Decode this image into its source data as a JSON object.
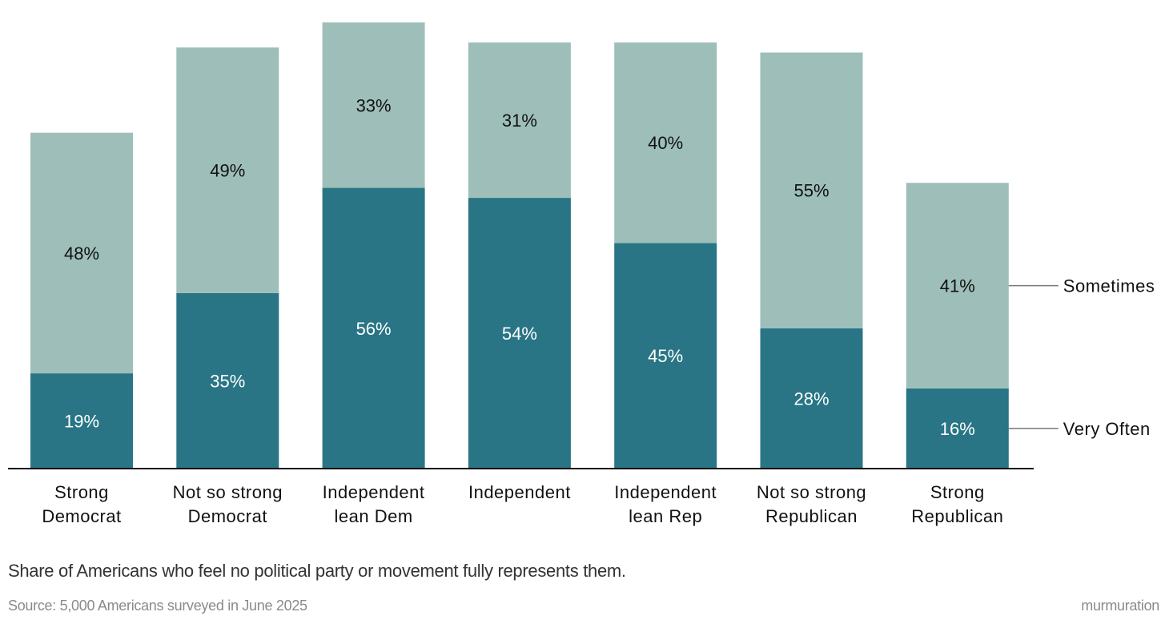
{
  "chart_data": {
    "type": "bar",
    "stacked": true,
    "categories": [
      [
        "Strong",
        "Democrat"
      ],
      [
        "Not so strong",
        "Democrat"
      ],
      [
        "Independent",
        "lean Dem"
      ],
      [
        "Independent"
      ],
      [
        "Independent",
        "lean Rep"
      ],
      [
        "Not so strong",
        "Republican"
      ],
      [
        "Strong",
        "Republican"
      ]
    ],
    "series": [
      {
        "name": "Very Often",
        "values": [
          19,
          35,
          56,
          54,
          45,
          28,
          16
        ],
        "labels": [
          "19%",
          "35%",
          "56%",
          "54%",
          "45%",
          "28%",
          "16%"
        ],
        "color": "#297585",
        "label_color": "#ffffff"
      },
      {
        "name": "Sometimes",
        "values": [
          48,
          49,
          33,
          31,
          40,
          55,
          41
        ],
        "labels": [
          "48%",
          "49%",
          "33%",
          "31%",
          "40%",
          "55%",
          "41%"
        ],
        "color": "#9ebfb9",
        "label_color": "#111111"
      }
    ],
    "ylim": [
      0,
      89
    ],
    "grid": false,
    "legend": "right"
  },
  "caption": "Share of Americans who feel no political party or movement fully represents them.",
  "source": "Source: 5,000 Americans surveyed in June 2025",
  "brand": "murmuration"
}
